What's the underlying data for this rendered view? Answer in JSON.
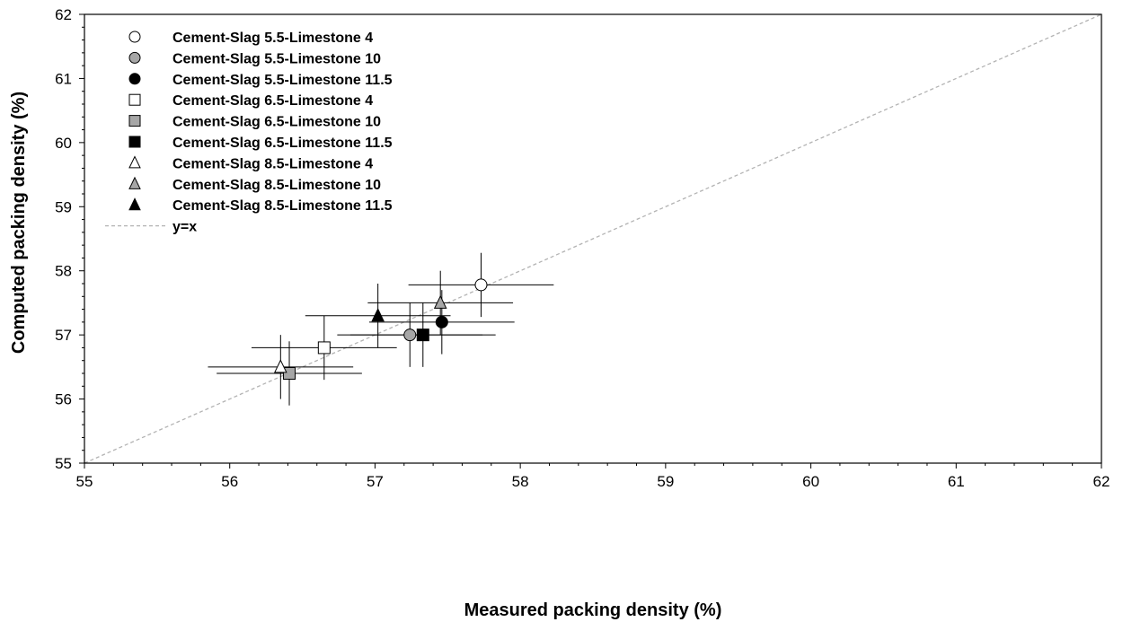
{
  "chart_data": {
    "type": "scatter",
    "title": "",
    "xlabel": "Measured packing density (%)",
    "ylabel": "Computed packing density (%)",
    "xlim": [
      55,
      62
    ],
    "ylim": [
      55,
      62
    ],
    "xticks": [
      "55",
      "56",
      "57",
      "58",
      "59",
      "60",
      "61",
      "62"
    ],
    "yticks": [
      "55",
      "56",
      "57",
      "58",
      "59",
      "60",
      "61",
      "62"
    ],
    "grid": false,
    "legend_position": "top-left",
    "series": [
      {
        "name": "Cement-Slag 5.5-Limestone 4",
        "marker": "circle",
        "fill": "#ffffff",
        "x": 57.73,
        "y": 57.78,
        "xerr": 0.5,
        "yerr": 0.5
      },
      {
        "name": "Cement-Slag 5.5-Limestone 10",
        "marker": "circle",
        "fill": "#a6a6a6",
        "x": 57.24,
        "y": 57.0,
        "xerr": 0.5,
        "yerr": 0.5
      },
      {
        "name": "Cement-Slag 5.5-Limestone 11.5",
        "marker": "circle",
        "fill": "#000000",
        "x": 57.46,
        "y": 57.2,
        "xerr": 0.5,
        "yerr": 0.5
      },
      {
        "name": "Cement-Slag 6.5-Limestone 4",
        "marker": "square",
        "fill": "#ffffff",
        "x": 56.65,
        "y": 56.8,
        "xerr": 0.5,
        "yerr": 0.5
      },
      {
        "name": "Cement-Slag 6.5-Limestone 10",
        "marker": "square",
        "fill": "#a6a6a6",
        "x": 56.41,
        "y": 56.4,
        "xerr": 0.5,
        "yerr": 0.5
      },
      {
        "name": "Cement-Slag 6.5-Limestone 11.5",
        "marker": "square",
        "fill": "#000000",
        "x": 57.33,
        "y": 57.0,
        "xerr": 0.5,
        "yerr": 0.5
      },
      {
        "name": "Cement-Slag 8.5-Limestone 4",
        "marker": "triangle",
        "fill": "#ffffff",
        "x": 56.35,
        "y": 56.5,
        "xerr": 0.5,
        "yerr": 0.5
      },
      {
        "name": "Cement-Slag 8.5-Limestone 10",
        "marker": "triangle",
        "fill": "#a6a6a6",
        "x": 57.45,
        "y": 57.5,
        "xerr": 0.5,
        "yerr": 0.5
      },
      {
        "name": "Cement-Slag 8.5-Limestone 11.5",
        "marker": "triangle",
        "fill": "#000000",
        "x": 57.02,
        "y": 57.3,
        "xerr": 0.5,
        "yerr": 0.5
      }
    ],
    "reference_line": {
      "name": "y=x",
      "color": "#b3b3b3",
      "style": "dashed"
    }
  }
}
